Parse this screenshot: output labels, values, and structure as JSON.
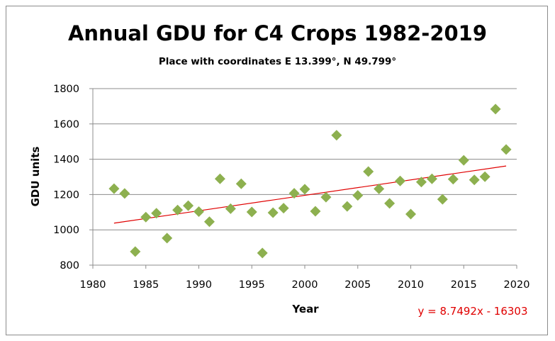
{
  "chart_data": {
    "type": "scatter",
    "title": "Annual GDU for C4 Crops 1982-2019",
    "subtitle": "Place with coordinates E 13.399°, N 49.799°",
    "xlabel": "Year",
    "ylabel": "GDU units",
    "xlim": [
      1980,
      2020
    ],
    "ylim": [
      800,
      1800
    ],
    "x_ticks": [
      1980,
      1985,
      1990,
      1995,
      2000,
      2005,
      2010,
      2015,
      2020
    ],
    "y_ticks": [
      800,
      1000,
      1200,
      1400,
      1600,
      1800
    ],
    "grid": "horizontal",
    "legend": "none",
    "marker": "diamond",
    "marker_color": "#8db04f",
    "x": [
      1982,
      1983,
      1984,
      1985,
      1986,
      1987,
      1988,
      1989,
      1990,
      1991,
      1992,
      1993,
      1994,
      1995,
      1996,
      1997,
      1998,
      1999,
      2000,
      2001,
      2002,
      2003,
      2004,
      2005,
      2006,
      2007,
      2008,
      2009,
      2010,
      2011,
      2012,
      2013,
      2014,
      2015,
      2016,
      2017,
      2018,
      2019
    ],
    "y": [
      1233,
      1206,
      877,
      1072,
      1094,
      953,
      1112,
      1137,
      1103,
      1046,
      1289,
      1120,
      1261,
      1101,
      869,
      1097,
      1123,
      1207,
      1230,
      1105,
      1185,
      1536,
      1133,
      1195,
      1330,
      1232,
      1150,
      1277,
      1089,
      1271,
      1289,
      1173,
      1287,
      1394,
      1283,
      1301,
      1684,
      1455
    ],
    "trendline": {
      "slope": 8.7492,
      "intercept": -16303,
      "color": "#e00000",
      "equation": "y = 8.7492x - 16303"
    }
  }
}
